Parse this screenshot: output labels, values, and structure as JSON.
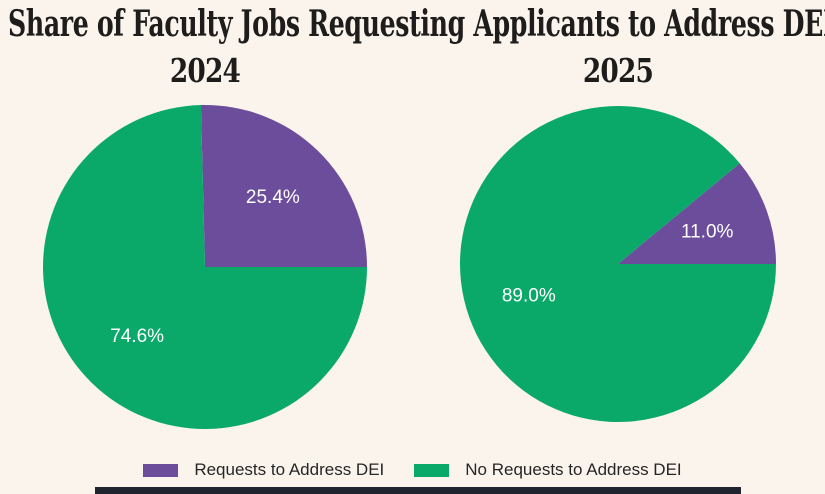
{
  "title": "Share of Faculty Jobs Requesting Applicants to Address DEI",
  "colors": {
    "purple": "#6c4d9b",
    "green": "#0aa96a",
    "background": "#faf4ec",
    "percent_label_text": "#ffffff",
    "title_text": "#1e1d1b",
    "legend_text": "#262626",
    "bottom_bar": "#20242e"
  },
  "legend": {
    "items": [
      {
        "label": "Requests to Address DEI",
        "color": "#6c4d9b"
      },
      {
        "label": "No Requests to Address DEI",
        "color": "#0aa96a"
      }
    ]
  },
  "chart_data": [
    {
      "type": "pie",
      "title": "2024",
      "labels": [
        "Requests to Address DEI",
        "No Requests to Address DEI"
      ],
      "values": [
        25.4,
        74.6
      ],
      "autopct_labels": [
        "25.4%",
        "74.6%"
      ],
      "colors": [
        "#6c4d9b",
        "#0aa96a"
      ],
      "start_angle_deg": 0,
      "direction": "counterclockwise",
      "label_radius_fraction": 0.6,
      "legend_position": "bottom"
    },
    {
      "type": "pie",
      "title": "2025",
      "labels": [
        "Requests to Address DEI",
        "No Requests to Address DEI"
      ],
      "values": [
        11.0,
        89.0
      ],
      "autopct_labels": [
        "11.0%",
        "89.0%"
      ],
      "colors": [
        "#6c4d9b",
        "#0aa96a"
      ],
      "start_angle_deg": 0,
      "direction": "counterclockwise",
      "label_radius_fraction": 0.6,
      "legend_position": "bottom"
    }
  ]
}
